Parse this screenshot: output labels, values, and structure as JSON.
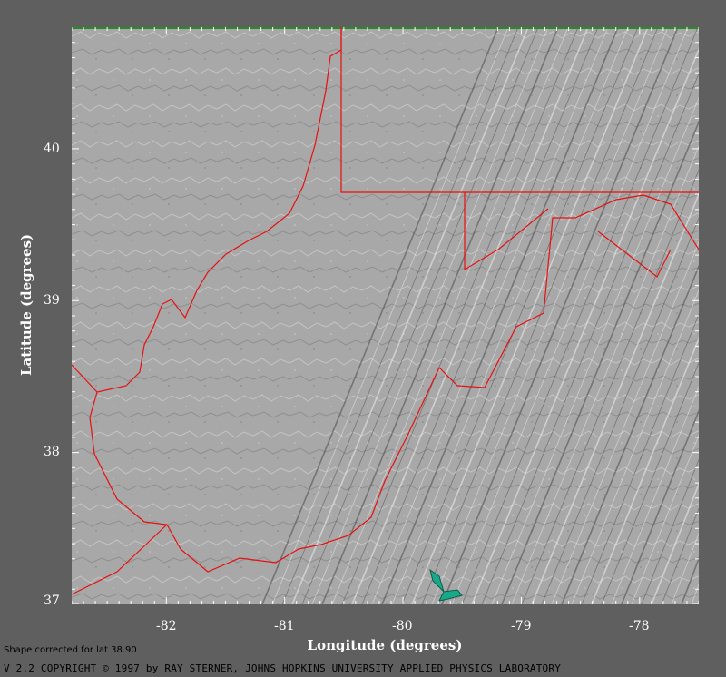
{
  "map": {
    "region": "West Virginia relief map",
    "lon_range": [
      -82.8,
      -77.5
    ],
    "lat_range": [
      37.0,
      40.8
    ],
    "x_ticks": [
      {
        "value": -82,
        "label": "-82"
      },
      {
        "value": -81,
        "label": "-81"
      },
      {
        "value": -80,
        "label": "-80"
      },
      {
        "value": -79,
        "label": "-79"
      },
      {
        "value": -78,
        "label": "-78"
      }
    ],
    "y_ticks": [
      {
        "value": 40,
        "label": "40"
      },
      {
        "value": 39,
        "label": "39"
      },
      {
        "value": 38,
        "label": "38"
      },
      {
        "value": 37,
        "label": "37"
      }
    ],
    "x_axis_title": "Longitude (degrees)",
    "y_axis_title": "Latitude (degrees)",
    "border_color": "#e81010",
    "water_color": "#1aa88a",
    "background_color": "#5f5f5f",
    "relief_color": "#a8a8a8",
    "top_edge_color": "#2a8a2a"
  },
  "footer": {
    "shape_note": "Shape corrected for lat 38.90",
    "copyright": "V 2.2  COPYRIGHT © 1997 by RAY STERNER, JOHNS HOPKINS UNIVERSITY APPLIED PHYSICS LABORATORY"
  }
}
